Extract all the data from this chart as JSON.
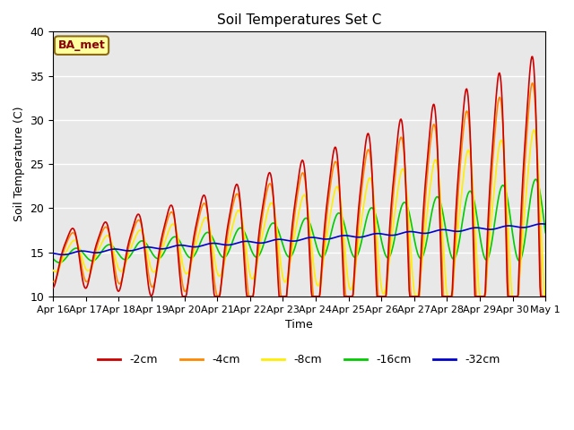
{
  "title": "Soil Temperatures Set C",
  "xlabel": "Time",
  "ylabel": "Soil Temperature (C)",
  "ylim": [
    10,
    40
  ],
  "yticks": [
    10,
    15,
    20,
    25,
    30,
    35,
    40
  ],
  "legend_label": "BA_met",
  "series_labels": [
    "-2cm",
    "-4cm",
    "-8cm",
    "-16cm",
    "-32cm"
  ],
  "series_colors": [
    "#cc0000",
    "#ff8800",
    "#ffee00",
    "#00cc00",
    "#0000cc"
  ],
  "background_color": "#e8e8e8",
  "tick_labels": [
    "Apr 16",
    "Apr 17",
    "Apr 18",
    "Apr 19",
    "Apr 20",
    "Apr 21",
    "Apr 22",
    "Apr 23",
    "Apr 24",
    "Apr 25",
    "Apr 26",
    "Apr 27",
    "Apr 28",
    "Apr 29",
    "Apr 30",
    "May 1"
  ],
  "n_days": 15
}
